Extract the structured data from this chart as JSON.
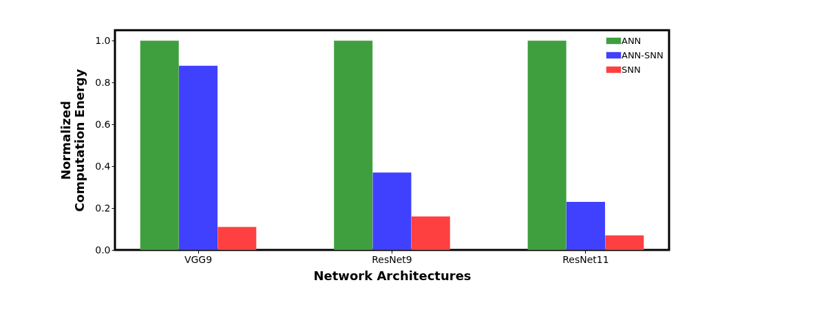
{
  "chart_data": {
    "type": "bar",
    "xlabel": "Network Architectures",
    "ylabel": "Normalized\nComputation Energy",
    "categories": [
      "VGG9",
      "ResNet9",
      "ResNet11"
    ],
    "series": [
      {
        "name": "ANN",
        "color": "#3f9f3f",
        "values": [
          1.0,
          1.0,
          1.0
        ]
      },
      {
        "name": "ANN-SNN",
        "color": "#4040ff",
        "values": [
          0.88,
          0.37,
          0.23
        ]
      },
      {
        "name": "SNN",
        "color": "#ff4040",
        "values": [
          0.11,
          0.16,
          0.07
        ]
      }
    ],
    "ylim": [
      0,
      1.05
    ],
    "yticks": [
      {
        "value": 0,
        "label": "0.0"
      },
      0.2,
      0.4,
      0.6,
      0.8,
      {
        "value": 1,
        "label": "1.0"
      }
    ],
    "grid": false,
    "legend": "top right"
  }
}
